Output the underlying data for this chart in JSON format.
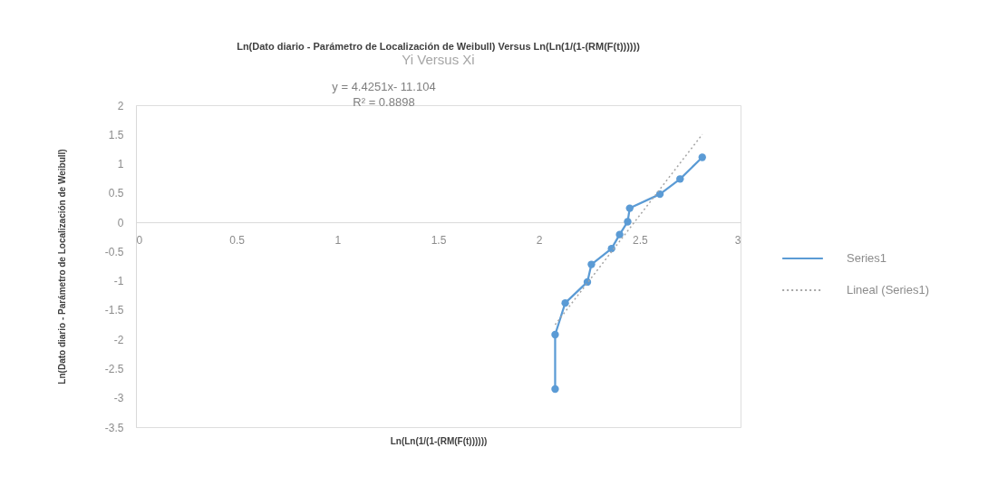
{
  "chart_data": {
    "type": "line",
    "title": "Ln(Dato diario - Parámetro de Localización de Weibull) Versus Ln(Ln(1/(1-(RM(F(t))))))",
    "subtitle": "Yi Versus Xi",
    "xlabel": "Ln(Ln(1/(1-(RM(F(t))))))",
    "ylabel": "Ln(Dato diario - Parámetro de Localización de Weibull)",
    "annotations": [
      "y = 4.4251x- 11.104",
      "R² = 0.8898"
    ],
    "xlim": [
      0,
      3
    ],
    "xticks": [
      0,
      0.5,
      1,
      1.5,
      2,
      2.5,
      3
    ],
    "ylim": [
      -3.5,
      2
    ],
    "yticks": [
      -3.5,
      -3,
      -2.5,
      -2,
      -1.5,
      -1,
      -0.5,
      0,
      0.5,
      1,
      1.5,
      2
    ],
    "grid": false,
    "legend": "right",
    "marker": "circle",
    "line_style": "solid",
    "series": [
      {
        "name": "Series1",
        "color": "#5b9bd5",
        "x": [
          2.08,
          2.08,
          2.13,
          2.24,
          2.26,
          2.36,
          2.4,
          2.44,
          2.45,
          2.6,
          2.7,
          2.81
        ],
        "values": [
          -2.85,
          -1.92,
          -1.38,
          -1.02,
          -0.72,
          -0.45,
          -0.21,
          0.01,
          0.24,
          0.48,
          0.74,
          1.11
        ]
      },
      {
        "name": "Lineal (Series1)",
        "color": "#a5a5a5",
        "line_style": "dotted",
        "marker": "none",
        "x": [
          2.08,
          2.81
        ],
        "values": [
          -1.75,
          1.5
        ]
      }
    ]
  }
}
